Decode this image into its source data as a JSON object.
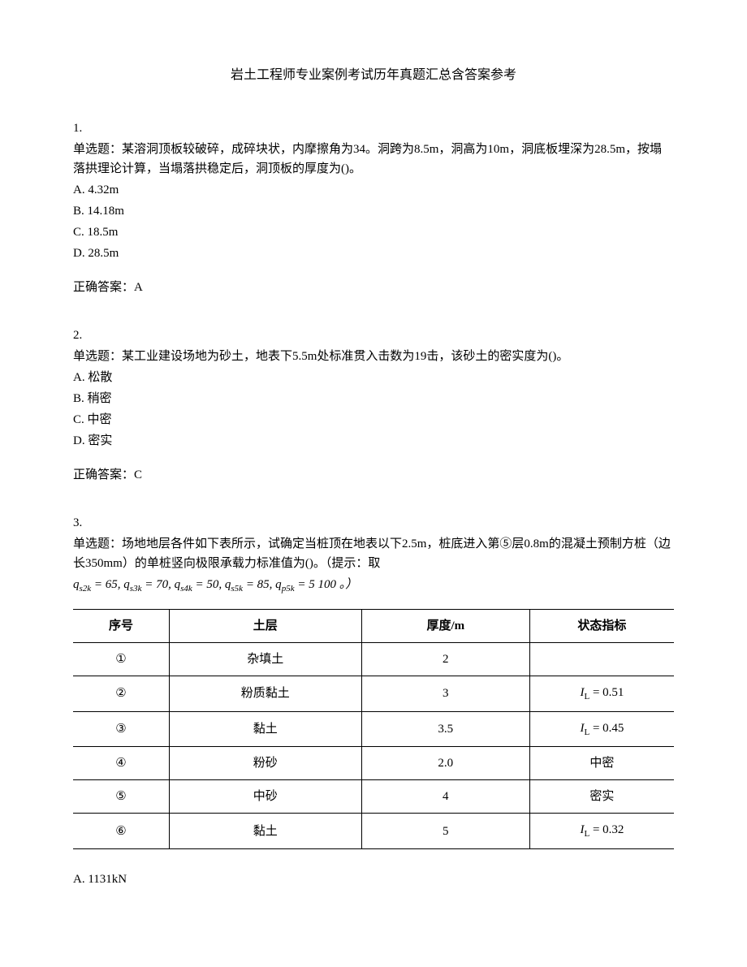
{
  "title": "岩土工程师专业案例考试历年真题汇总含答案参考",
  "q1": {
    "number": "1.",
    "prompt_label": "单选题：",
    "prompt": "某溶洞顶板较破碎，成碎块状，内摩擦角为34。洞跨为8.5m，洞高为10m，洞底板埋深为28.5m，按塌落拱理论计算，当塌落拱稳定后，洞顶板的厚度为()。",
    "optA": "A. 4.32m",
    "optB": "B. 14.18m",
    "optC": "C. 18.5m",
    "optD": "D. 28.5m",
    "answer_label": "正确答案：",
    "answer": "A"
  },
  "q2": {
    "number": "2.",
    "prompt_label": "单选题：",
    "prompt": "某工业建设场地为砂土，地表下5.5m处标准贯入击数为19击，该砂土的密实度为()。",
    "optA": "A. 松散",
    "optB": "B. 稍密",
    "optC": "C. 中密",
    "optD": "D. 密实",
    "answer_label": "正确答案：",
    "answer": "C"
  },
  "q3": {
    "number": "3.",
    "prompt_label": "单选题：",
    "prompt": "场地地层各件如下表所示，试确定当桩顶在地表以下2.5m，桩底进入第⑤层0.8m的混凝土预制方桩（边长350mm）的单桩竖向极限承载力标准值为()。（提示：取",
    "formula_html": "q<span class='sub'>s2k</span> = 65, q<span class='sub'>s3k</span> = 70, q<span class='sub'>s4k</span> = 50, q<span class='sub'>s5k</span> = 85, q<span class='sub'>p5k</span> = 5 100 。）",
    "table": {
      "headers": [
        "序号",
        "土层",
        "厚度/m",
        "状态指标"
      ],
      "rows": [
        {
          "num": "①",
          "soil": "杂填土",
          "thickness": "2",
          "state": ""
        },
        {
          "num": "②",
          "soil": "粉质黏土",
          "thickness": "3",
          "state_html": "<i>I</i><span class='sub'>L</span> = 0.51"
        },
        {
          "num": "③",
          "soil": "黏土",
          "thickness": "3.5",
          "state_html": "<i>I</i><span class='sub'>L</span> = 0.45"
        },
        {
          "num": "④",
          "soil": "粉砂",
          "thickness": "2.0",
          "state": "中密"
        },
        {
          "num": "⑤",
          "soil": "中砂",
          "thickness": "4",
          "state": "密实"
        },
        {
          "num": "⑥",
          "soil": "黏土",
          "thickness": "5",
          "state_html": "<i>I</i><span class='sub'>L</span> = 0.32"
        }
      ]
    },
    "optA": "A. 1131kN"
  }
}
